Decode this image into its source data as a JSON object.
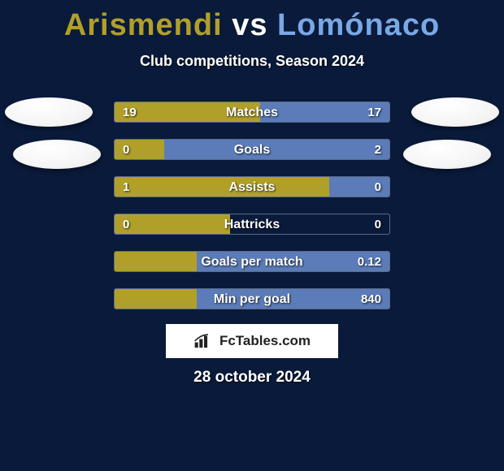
{
  "background_color": "#0a1a3a",
  "title": {
    "player1": "Arismendi",
    "vs": "vs",
    "player2": "Lomónaco",
    "player1_color": "#b0a02a",
    "vs_color": "#ffffff",
    "player2_color": "#7aa8e6",
    "fontsize": 38
  },
  "subtitle": "Club competitions, Season 2024",
  "colors": {
    "left_fill": "#b0a02a",
    "right_fill": "#5b7cb8",
    "bar_border": "#5a6a8a",
    "bar_bg": "#0a1a3a"
  },
  "stats": [
    {
      "label": "Matches",
      "left_val": "19",
      "right_val": "17",
      "left_pct": 53,
      "right_pct": 47
    },
    {
      "label": "Goals",
      "left_val": "0",
      "right_val": "2",
      "left_pct": 18,
      "right_pct": 82
    },
    {
      "label": "Assists",
      "left_val": "1",
      "right_val": "0",
      "left_pct": 78,
      "right_pct": 22
    },
    {
      "label": "Hattricks",
      "left_val": "0",
      "right_val": "0",
      "left_pct": 42,
      "right_pct": 0
    },
    {
      "label": "Goals per match",
      "left_val": "",
      "right_val": "0.12",
      "left_pct": 30,
      "right_pct": 70
    },
    {
      "label": "Min per goal",
      "left_val": "",
      "right_val": "840",
      "left_pct": 30,
      "right_pct": 70
    }
  ],
  "logo": {
    "text_prefix": "Fc",
    "text_bold": "Tables",
    "text_suffix": ".com"
  },
  "date": "28 october 2024"
}
